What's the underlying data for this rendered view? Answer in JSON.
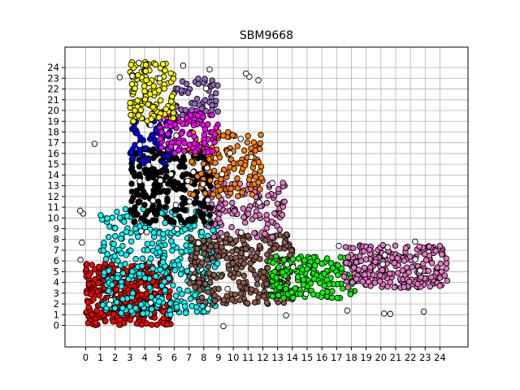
{
  "chart_data": {
    "type": "scatter",
    "title": "SBM9668",
    "xlabel": "",
    "ylabel": "",
    "xlim": [
      -1.4,
      25.9
    ],
    "ylim": [
      -2.0,
      25.9
    ],
    "grid": true,
    "legend": "none",
    "x_ticks": [
      "0",
      "1",
      "2",
      "3",
      "4",
      "5",
      "6",
      "7",
      "8",
      "9",
      "10",
      "11",
      "12",
      "13",
      "14",
      "15",
      "16",
      "17",
      "18",
      "19",
      "20",
      "21",
      "22",
      "23",
      "24"
    ],
    "y_ticks": [
      "0",
      "1",
      "2",
      "3",
      "4",
      "5",
      "6",
      "7",
      "8",
      "9",
      "10",
      "11",
      "12",
      "13",
      "14",
      "15",
      "16",
      "17",
      "18",
      "19",
      "20",
      "21",
      "22",
      "23",
      "24"
    ],
    "marker_edge_color": "#000000",
    "clusters": [
      {
        "color": "#ff0000",
        "x_range": [
          0.0,
          5.8
        ],
        "y_range": [
          0.0,
          5.8
        ],
        "count": 420
      },
      {
        "color": "#00ffff",
        "x_range": [
          1.0,
          9.0
        ],
        "y_range": [
          1.0,
          11.0
        ],
        "count": 380
      },
      {
        "color": "#8b5a4b",
        "x_range": [
          7.0,
          14.0
        ],
        "y_range": [
          2.0,
          8.5
        ],
        "count": 300
      },
      {
        "color": "#00ff00",
        "x_range": [
          12.5,
          18.5
        ],
        "y_range": [
          2.5,
          6.5
        ],
        "count": 170
      },
      {
        "color": "#e377c2",
        "x_range": [
          17.5,
          24.5
        ],
        "y_range": [
          3.5,
          7.5
        ],
        "count": 260
      },
      {
        "color": "#e377c2",
        "x_range": [
          8.0,
          13.5
        ],
        "y_range": [
          8.0,
          13.5
        ],
        "count": 120
      },
      {
        "color": "#000000",
        "x_range": [
          3.0,
          8.5
        ],
        "y_range": [
          9.5,
          16.5
        ],
        "count": 260
      },
      {
        "color": "#0000ff",
        "x_range": [
          3.0,
          6.0
        ],
        "y_range": [
          15.0,
          19.0
        ],
        "count": 60
      },
      {
        "color": "#ff7f0e",
        "x_range": [
          7.0,
          12.0
        ],
        "y_range": [
          12.0,
          18.0
        ],
        "count": 130
      },
      {
        "color": "#ff00ff",
        "x_range": [
          5.0,
          9.0
        ],
        "y_range": [
          16.0,
          20.0
        ],
        "count": 100
      },
      {
        "color": "#9467bd",
        "x_range": [
          6.0,
          9.0
        ],
        "y_range": [
          19.5,
          23.0
        ],
        "count": 50
      },
      {
        "color": "#ffff00",
        "x_range": [
          3.0,
          6.0
        ],
        "y_range": [
          19.0,
          24.5
        ],
        "count": 120
      },
      {
        "color": "#ffffff",
        "x_range": [
          -0.5,
          25.0
        ],
        "y_range": [
          -0.5,
          25.0
        ],
        "count": 100
      }
    ]
  }
}
